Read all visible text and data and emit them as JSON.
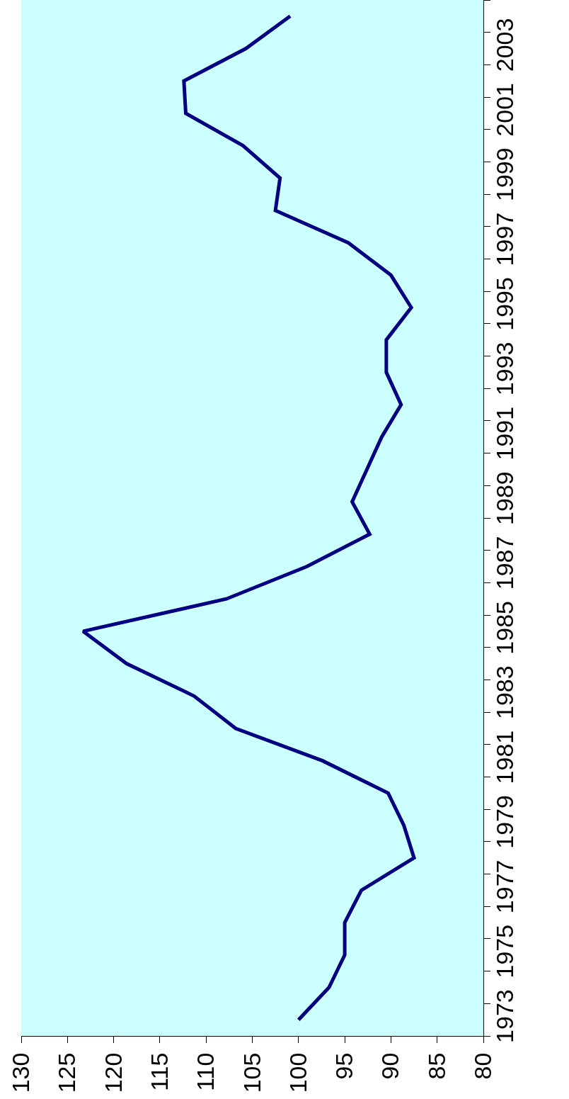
{
  "chart_data": {
    "type": "line",
    "orientation": "horizontal",
    "categories": [
      null,
      "2003",
      null,
      "2001",
      null,
      "1999",
      null,
      "1997",
      null,
      "1995",
      null,
      "1993",
      null,
      "1991",
      null,
      "1989",
      null,
      "1987",
      null,
      "1985",
      null,
      "1983",
      null,
      "1981",
      null,
      "1979",
      null,
      "1977",
      null,
      "1975",
      null,
      "1973"
    ],
    "series": [
      {
        "color": "#000080",
        "values": [
          100.9,
          105.7,
          112.4,
          112.2,
          106.0,
          102.0,
          102.5,
          94.6,
          90.0,
          87.8,
          90.5,
          90.5,
          88.9,
          91.0,
          92.6,
          94.2,
          92.3,
          99.1,
          107.8,
          123.3,
          118.6,
          111.3,
          106.8,
          97.4,
          90.3,
          88.6,
          87.5,
          93.2,
          95.0,
          95.0,
          96.7,
          100.0
        ]
      }
    ],
    "xlim": [
      130,
      80
    ],
    "xticks": [
      130,
      125,
      120,
      115,
      110,
      105,
      100,
      95,
      90,
      85,
      80
    ],
    "grid": false,
    "marker": "none",
    "line_style": "solid"
  }
}
